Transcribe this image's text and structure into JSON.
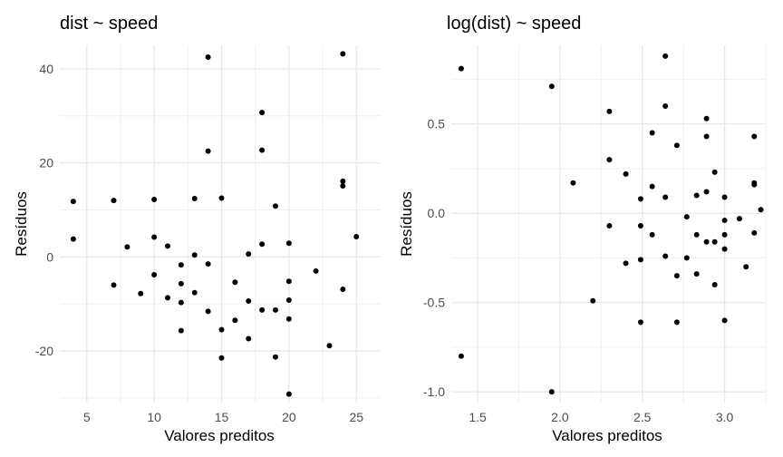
{
  "chart_data": [
    {
      "type": "scatter",
      "title": "dist ~ speed",
      "xlabel": "Valores preditos",
      "ylabel": "Resíduos",
      "xlim": [
        3,
        26.8
      ],
      "ylim": [
        -31,
        45
      ],
      "xticks": [
        5,
        10,
        15,
        20,
        25
      ],
      "yticks": [
        -20,
        0,
        20,
        40
      ],
      "grid": true,
      "points": [
        {
          "x": 4,
          "y": 3.8
        },
        {
          "x": 4,
          "y": 11.8
        },
        {
          "x": 7,
          "y": -6
        },
        {
          "x": 7,
          "y": 12
        },
        {
          "x": 8,
          "y": 2.1
        },
        {
          "x": 9,
          "y": -7.8
        },
        {
          "x": 10,
          "y": -3.8
        },
        {
          "x": 10,
          "y": 4.2
        },
        {
          "x": 10,
          "y": 12.2
        },
        {
          "x": 11,
          "y": -8.7
        },
        {
          "x": 11,
          "y": 2.3
        },
        {
          "x": 12,
          "y": -15.7
        },
        {
          "x": 12,
          "y": -9.7
        },
        {
          "x": 12,
          "y": -5.7
        },
        {
          "x": 12,
          "y": -1.7
        },
        {
          "x": 13,
          "y": -7.6
        },
        {
          "x": 13,
          "y": 0.4
        },
        {
          "x": 13,
          "y": 12.4
        },
        {
          "x": 14,
          "y": -11.6
        },
        {
          "x": 14,
          "y": -1.5
        },
        {
          "x": 14,
          "y": 22.5
        },
        {
          "x": 14,
          "y": 42.5
        },
        {
          "x": 15,
          "y": -21.5
        },
        {
          "x": 15,
          "y": -15.5
        },
        {
          "x": 15,
          "y": 12.5
        },
        {
          "x": 16,
          "y": -13.5
        },
        {
          "x": 16,
          "y": -5.4
        },
        {
          "x": 17,
          "y": -17.4
        },
        {
          "x": 17,
          "y": -9.4
        },
        {
          "x": 17,
          "y": 0.6
        },
        {
          "x": 18,
          "y": -11.3
        },
        {
          "x": 18,
          "y": 2.7
        },
        {
          "x": 18,
          "y": 22.7
        },
        {
          "x": 18,
          "y": 30.7
        },
        {
          "x": 19,
          "y": -21.3
        },
        {
          "x": 19,
          "y": -11.3
        },
        {
          "x": 19,
          "y": 10.8
        },
        {
          "x": 20,
          "y": -29.2
        },
        {
          "x": 20,
          "y": -13.2
        },
        {
          "x": 20,
          "y": -9.2
        },
        {
          "x": 20,
          "y": -5.2
        },
        {
          "x": 20,
          "y": 2.9
        },
        {
          "x": 22,
          "y": -3
        },
        {
          "x": 23,
          "y": -18.9
        },
        {
          "x": 24,
          "y": -6.9
        },
        {
          "x": 24,
          "y": 15.1
        },
        {
          "x": 24,
          "y": 16.1
        },
        {
          "x": 24,
          "y": 43.2
        },
        {
          "x": 25,
          "y": 4.3
        }
      ]
    },
    {
      "type": "scatter",
      "title": "log(dist) ~ speed",
      "xlabel": "Valores preditos",
      "ylabel": "Resíduos",
      "xlim": [
        1.34,
        3.25
      ],
      "ylim": [
        -1.06,
        0.94
      ],
      "xticks": [
        1.5,
        2.0,
        2.5,
        3.0
      ],
      "xtick_labels": [
        "1.5",
        "2.0",
        "2.5",
        "3.0"
      ],
      "yticks": [
        -1.0,
        -0.5,
        0.0,
        0.5
      ],
      "ytick_labels": [
        "-1.0",
        "-0.5",
        "0.0",
        "0.5"
      ],
      "grid": true,
      "points": [
        {
          "x": 1.4,
          "y": 0.81
        },
        {
          "x": 1.4,
          "y": -0.8
        },
        {
          "x": 1.95,
          "y": 0.71
        },
        {
          "x": 1.95,
          "y": -1.0
        },
        {
          "x": 2.08,
          "y": 0.17
        },
        {
          "x": 2.2,
          "y": -0.49
        },
        {
          "x": 2.3,
          "y": 0.57
        },
        {
          "x": 2.3,
          "y": 0.3
        },
        {
          "x": 2.3,
          "y": -0.07
        },
        {
          "x": 2.4,
          "y": 0.22
        },
        {
          "x": 2.4,
          "y": -0.28
        },
        {
          "x": 2.49,
          "y": 0.08
        },
        {
          "x": 2.49,
          "y": -0.07
        },
        {
          "x": 2.49,
          "y": -0.26
        },
        {
          "x": 2.49,
          "y": -0.61
        },
        {
          "x": 2.56,
          "y": 0.45
        },
        {
          "x": 2.56,
          "y": 0.15
        },
        {
          "x": 2.56,
          "y": -0.12
        },
        {
          "x": 2.64,
          "y": 0.88
        },
        {
          "x": 2.64,
          "y": 0.6
        },
        {
          "x": 2.64,
          "y": 0.09
        },
        {
          "x": 2.64,
          "y": -0.24
        },
        {
          "x": 2.71,
          "y": 0.38
        },
        {
          "x": 2.71,
          "y": -0.35
        },
        {
          "x": 2.71,
          "y": -0.61
        },
        {
          "x": 2.77,
          "y": -0.02
        },
        {
          "x": 2.77,
          "y": -0.25
        },
        {
          "x": 2.83,
          "y": 0.1
        },
        {
          "x": 2.83,
          "y": -0.12
        },
        {
          "x": 2.83,
          "y": -0.34
        },
        {
          "x": 2.89,
          "y": 0.53
        },
        {
          "x": 2.89,
          "y": 0.43
        },
        {
          "x": 2.89,
          "y": 0.12
        },
        {
          "x": 2.89,
          "y": -0.16
        },
        {
          "x": 2.94,
          "y": 0.23
        },
        {
          "x": 2.94,
          "y": -0.16
        },
        {
          "x": 2.94,
          "y": -0.4
        },
        {
          "x": 3.0,
          "y": 0.09
        },
        {
          "x": 3.0,
          "y": -0.04
        },
        {
          "x": 3.0,
          "y": -0.12
        },
        {
          "x": 3.0,
          "y": -0.2
        },
        {
          "x": 3.0,
          "y": -0.6
        },
        {
          "x": 3.09,
          "y": -0.03
        },
        {
          "x": 3.13,
          "y": -0.3
        },
        {
          "x": 3.18,
          "y": 0.43
        },
        {
          "x": 3.18,
          "y": 0.17
        },
        {
          "x": 3.18,
          "y": 0.16
        },
        {
          "x": 3.18,
          "y": -0.11
        },
        {
          "x": 3.22,
          "y": 0.02
        }
      ]
    }
  ]
}
